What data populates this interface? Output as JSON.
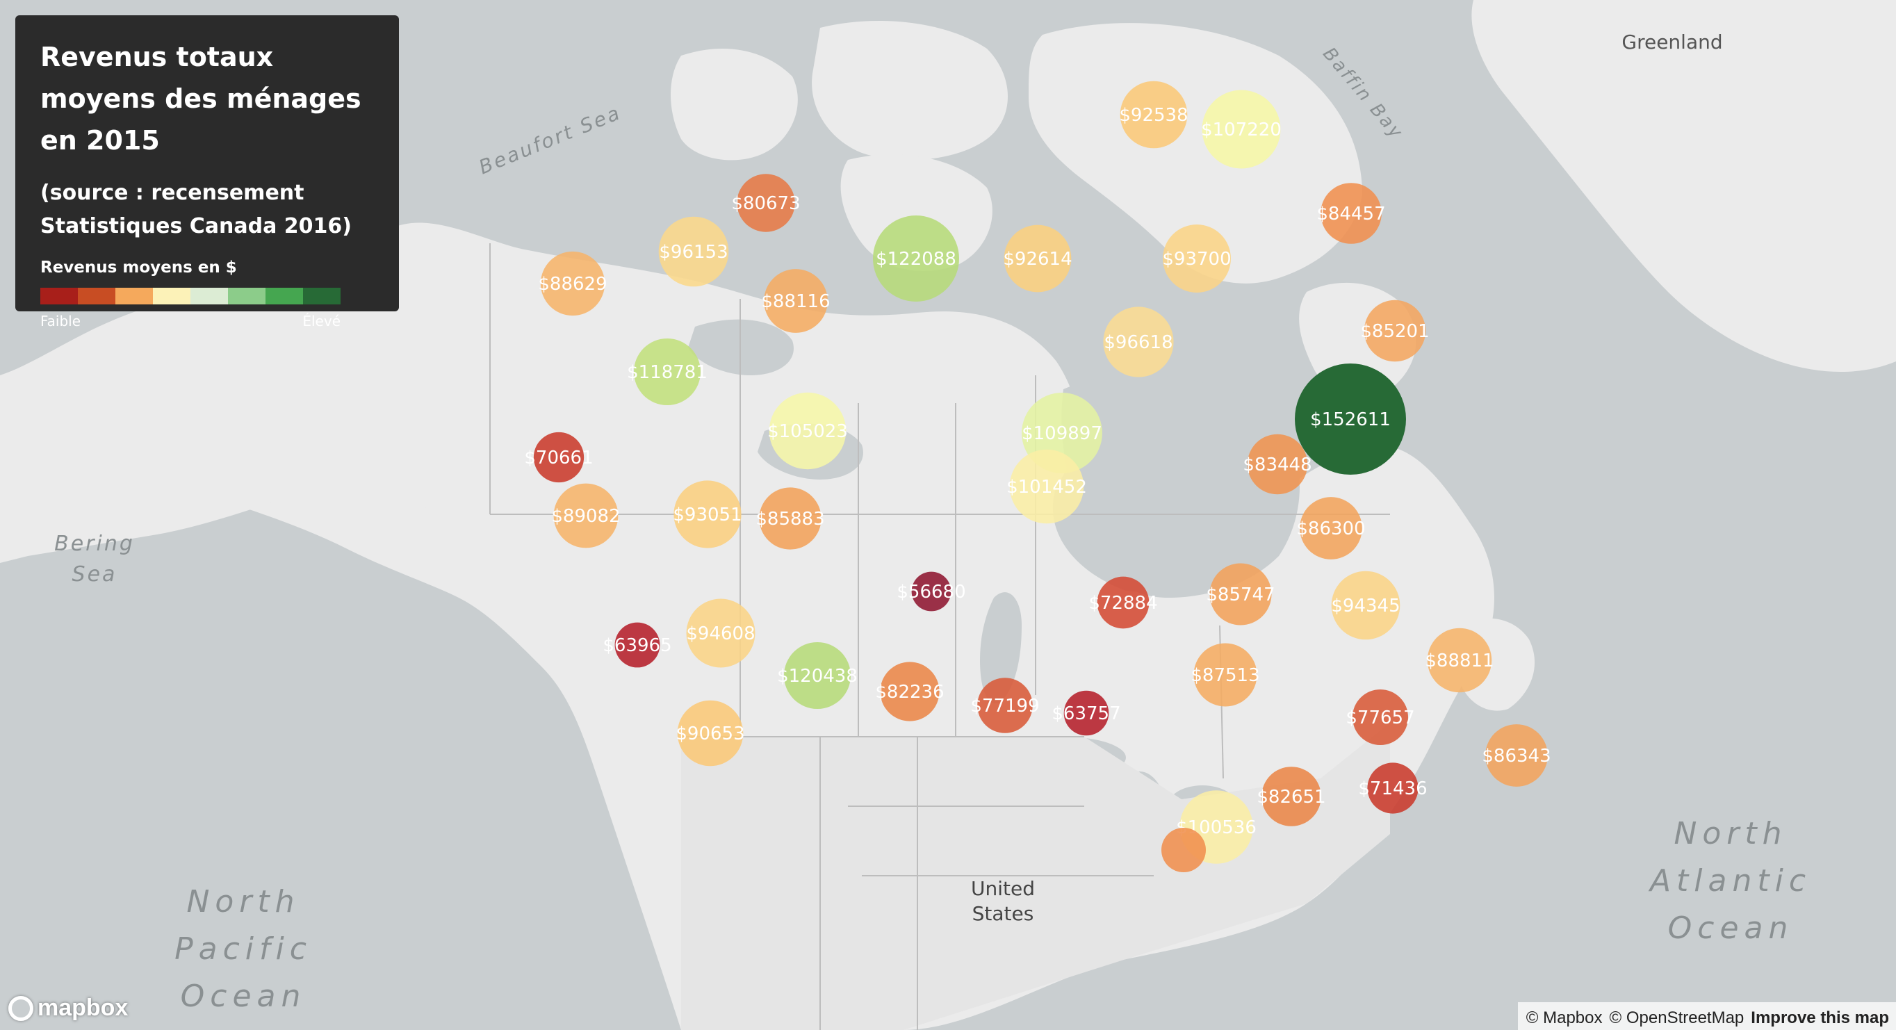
{
  "legend": {
    "title": "Revenus totaux moyens des ménages en 2015",
    "source": "(source : recensement Statistiques Canada 2016)",
    "scale_label": "Revenus moyens en $",
    "low": "Faible",
    "high": "Élevé",
    "colors": [
      "#a81f1a",
      "#c84d23",
      "#f5a95c",
      "#fcf2b8",
      "#dcecd4",
      "#8ccc8a",
      "#45a650",
      "#276a36"
    ]
  },
  "map_labels": {
    "greenland": "Greenland",
    "beaufort": "Beaufort Sea",
    "baffin": "Baffin Bay",
    "bering": [
      "Bering",
      "Sea"
    ],
    "pacific": [
      "North",
      "Pacific",
      "Ocean"
    ],
    "atlantic": [
      "North",
      "Atlantic",
      "Ocean"
    ],
    "us": [
      "United",
      "States"
    ]
  },
  "markers": [
    {
      "label": "$92538",
      "value": 92538,
      "color": "#fbc878"
    },
    {
      "label": "$107220",
      "value": 107220,
      "color": "#f6f7a6"
    },
    {
      "label": "$80673",
      "value": 80673,
      "color": "#e67a45"
    },
    {
      "label": "$84457",
      "value": 84457,
      "color": "#f0904e"
    },
    {
      "label": "$96153",
      "value": 96153,
      "color": "#fbd88a"
    },
    {
      "label": "$122088",
      "value": 122088,
      "color": "#b6db79"
    },
    {
      "label": "$92614",
      "value": 92614,
      "color": "#fbd07e"
    },
    {
      "label": "$93700",
      "value": 93700,
      "color": "#fbd486"
    },
    {
      "label": "$88629",
      "value": 88629,
      "color": "#f6b46a"
    },
    {
      "label": "$88116",
      "value": 88116,
      "color": "#f5ac62"
    },
    {
      "label": "$85201",
      "value": 85201,
      "color": "#f4a660"
    },
    {
      "label": "$96618",
      "value": 96618,
      "color": "#fbdc92"
    },
    {
      "label": "$118781",
      "value": 118781,
      "color": "#c2e07c"
    },
    {
      "label": "$152611",
      "value": 152611,
      "color": "#276a36"
    },
    {
      "label": "$70661",
      "value": 70661,
      "color": "#c93a2b"
    },
    {
      "label": "$105023",
      "value": 105023,
      "color": "#f6f7a8"
    },
    {
      "label": "$109897",
      "value": 109897,
      "color": "#e4f2a2"
    },
    {
      "label": "$83448",
      "value": 83448,
      "color": "#ef9450"
    },
    {
      "label": "$101452",
      "value": 101452,
      "color": "#fbeea5"
    },
    {
      "label": "$89082",
      "value": 89082,
      "color": "#f6b46a"
    },
    {
      "label": "$93051",
      "value": 93051,
      "color": "#fbcf80"
    },
    {
      "label": "$85883",
      "value": 85883,
      "color": "#f2a25a"
    },
    {
      "label": "$86300",
      "value": 86300,
      "color": "#f3a45c"
    },
    {
      "label": "$56680",
      "value": 56680,
      "color": "#8e1630"
    },
    {
      "label": "$72884",
      "value": 72884,
      "color": "#d44a33"
    },
    {
      "label": "$85747",
      "value": 85747,
      "color": "#f2a25a"
    },
    {
      "label": "$94345",
      "value": 94345,
      "color": "#fbd486"
    },
    {
      "label": "$63965",
      "value": 63965,
      "color": "#b51f2a"
    },
    {
      "label": "$94608",
      "value": 94608,
      "color": "#fbd486"
    },
    {
      "label": "$120438",
      "value": 120438,
      "color": "#b6db79"
    },
    {
      "label": "$82236",
      "value": 82236,
      "color": "#ea8648"
    },
    {
      "label": "$77199",
      "value": 77199,
      "color": "#d85a38"
    },
    {
      "label": "$63757",
      "value": 63757,
      "color": "#b51f2a"
    },
    {
      "label": "$87513",
      "value": 87513,
      "color": "#f5ac62"
    },
    {
      "label": "$88811",
      "value": 88811,
      "color": "#f6b46a"
    },
    {
      "label": "$77657",
      "value": 77657,
      "color": "#d85a38"
    },
    {
      "label": "$90653",
      "value": 90653,
      "color": "#fbc878"
    },
    {
      "label": "$86343",
      "value": 86343,
      "color": "#f3a45c"
    },
    {
      "label": "$82651",
      "value": 82651,
      "color": "#ea8648"
    },
    {
      "label": "$71436",
      "value": 71436,
      "color": "#c93a2b"
    },
    {
      "label": "$100536",
      "value": 100536,
      "color": "#fbeea5"
    },
    {
      "label": "",
      "value": null,
      "color": "#f0904e"
    }
  ],
  "attribution": {
    "mapbox": "© Mapbox",
    "osm": "© OpenStreetMap",
    "improve": "Improve this map"
  },
  "logo_text": "mapbox"
}
